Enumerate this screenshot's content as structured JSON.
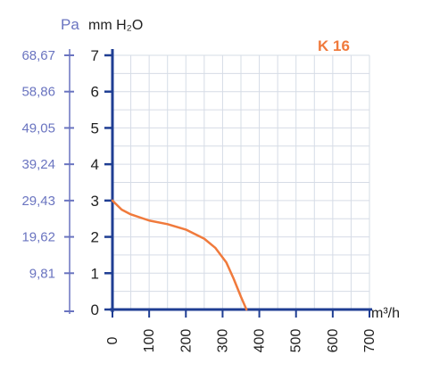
{
  "chart_data": {
    "type": "line",
    "title": "K 16",
    "xlabel": "m³/h",
    "ylabel": "mm H₂O",
    "ylabel_secondary": "Pa",
    "xlim": [
      0,
      700
    ],
    "ylim": [
      0,
      7
    ],
    "x_ticks": [
      "0",
      "100",
      "200",
      "300",
      "400",
      "500",
      "600",
      "700"
    ],
    "y_ticks": [
      "0",
      "1",
      "2",
      "3",
      "4",
      "5",
      "6",
      "7"
    ],
    "y2_ticks": [
      "9,81",
      "19,62",
      "29,43",
      "39,24",
      "49,05",
      "58,86",
      "68,67"
    ],
    "grid": true,
    "series": [
      {
        "name": "K 16",
        "color": "#f07a3c",
        "x": [
          0,
          25,
          50,
          100,
          150,
          200,
          250,
          280,
          310,
          330,
          350,
          365
        ],
        "y": [
          3.0,
          2.75,
          2.62,
          2.45,
          2.35,
          2.2,
          1.95,
          1.7,
          1.3,
          0.85,
          0.35,
          0.0
        ]
      }
    ]
  }
}
